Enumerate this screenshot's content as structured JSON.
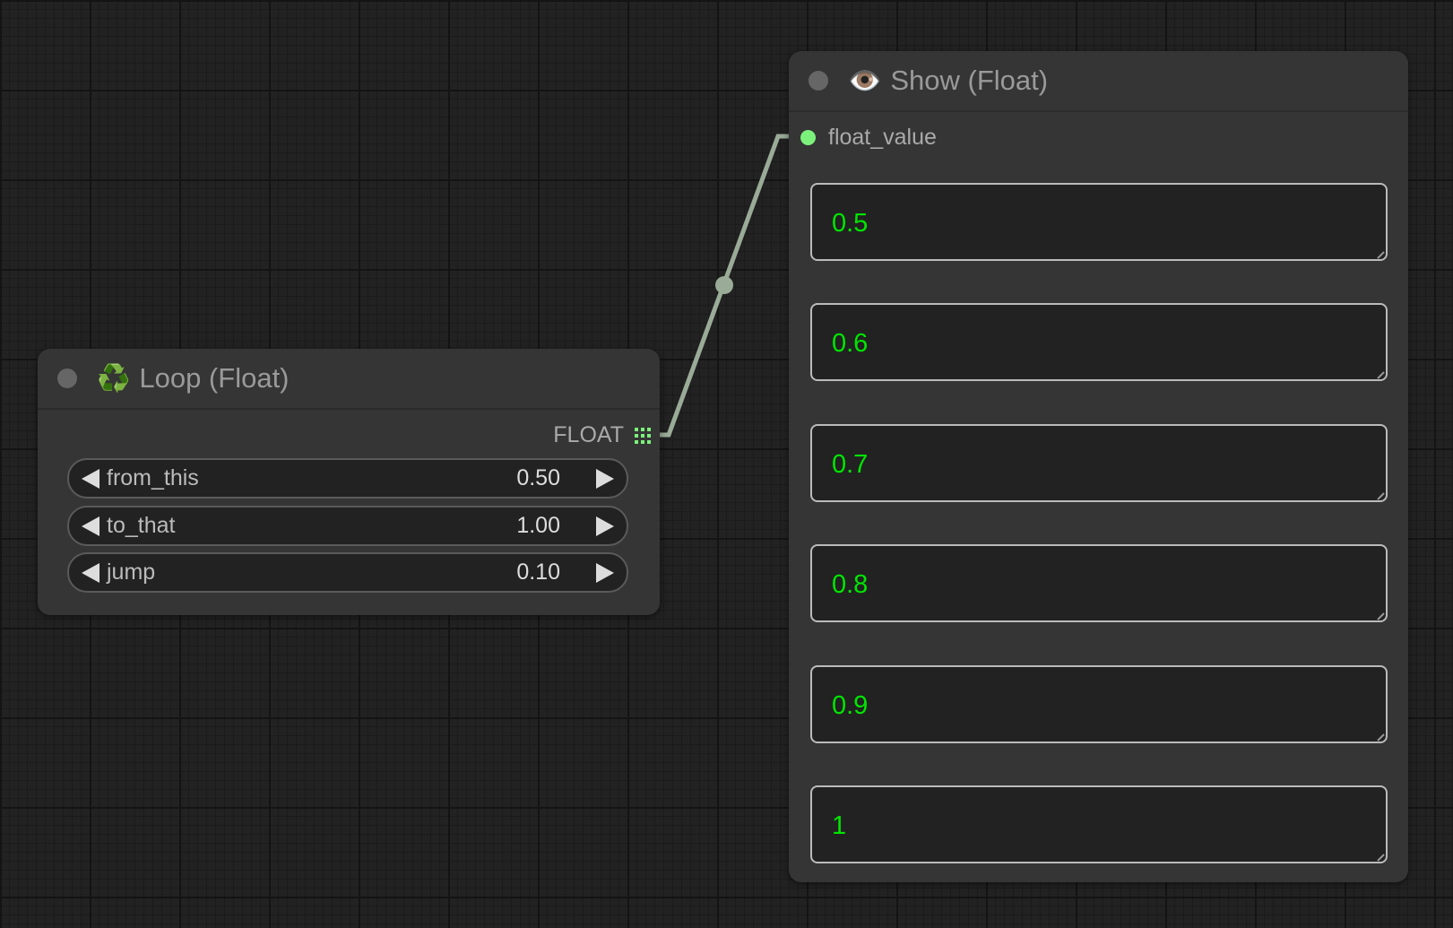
{
  "loop_node": {
    "title": "Loop (Float)",
    "icon": "recycle-icon",
    "output_label": "FLOAT",
    "widgets": [
      {
        "name": "from_this",
        "value": "0.50"
      },
      {
        "name": "to_that",
        "value": "1.00"
      },
      {
        "name": "jump",
        "value": "0.10"
      }
    ]
  },
  "show_node": {
    "title": "Show (Float)",
    "icon": "eye-icon",
    "input_label": "float_value",
    "values": [
      "0.5",
      "0.6",
      "0.7",
      "0.8",
      "0.9",
      "1"
    ]
  },
  "colors": {
    "link": "#9aab98",
    "slot_float": "#7cf27c",
    "value_text": "#00e600"
  }
}
